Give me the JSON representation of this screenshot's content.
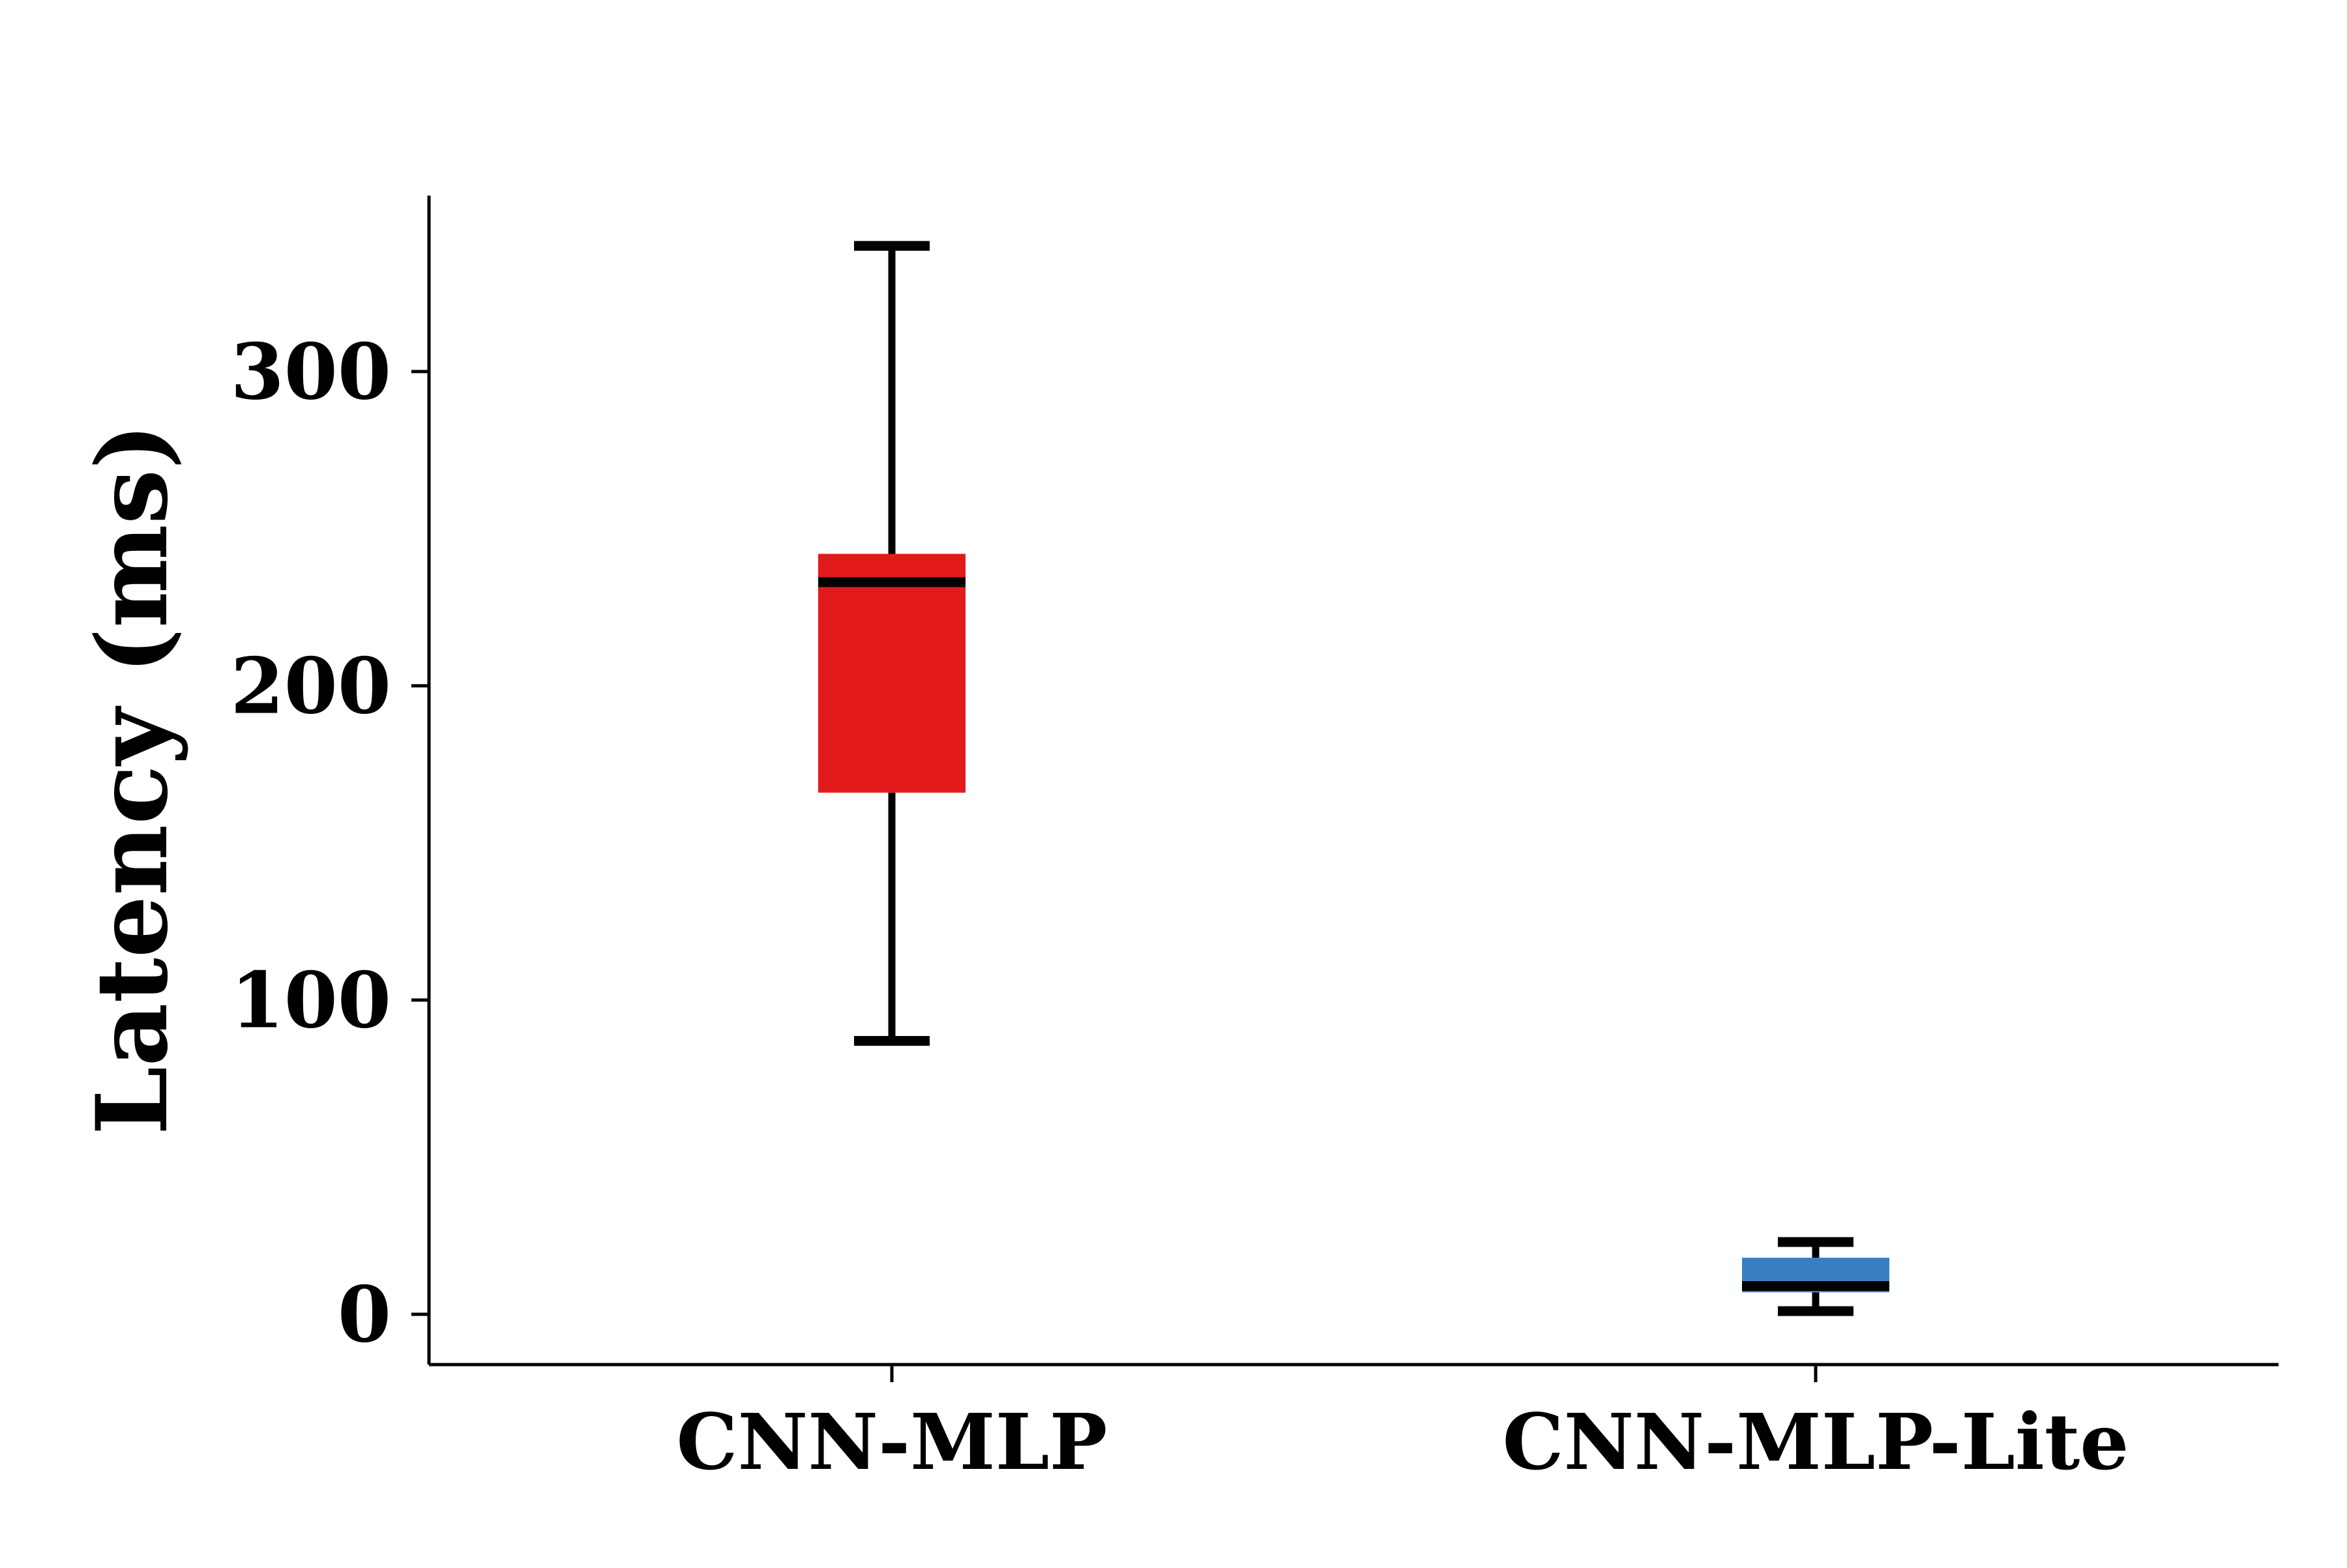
{
  "chart_data": {
    "type": "box",
    "title": "",
    "xlabel": "",
    "ylabel": "Latency (ms)",
    "ylim": [
      -16,
      356
    ],
    "yticks": [
      0,
      100,
      200,
      300
    ],
    "grid": false,
    "legend": "none",
    "categories": [
      "CNN-MLP",
      "CNN-MLP-Lite"
    ],
    "boxes": [
      {
        "category": "CNN-MLP",
        "whisker_low": 87,
        "q1": 166,
        "median": 233,
        "q3": 242,
        "whisker_high": 340,
        "color": "#e31a1c"
      },
      {
        "category": "CNN-MLP-Lite",
        "whisker_low": 1,
        "q1": 7,
        "median": 9,
        "q3": 18,
        "whisker_high": 23,
        "color": "#3a7fc1"
      }
    ]
  }
}
